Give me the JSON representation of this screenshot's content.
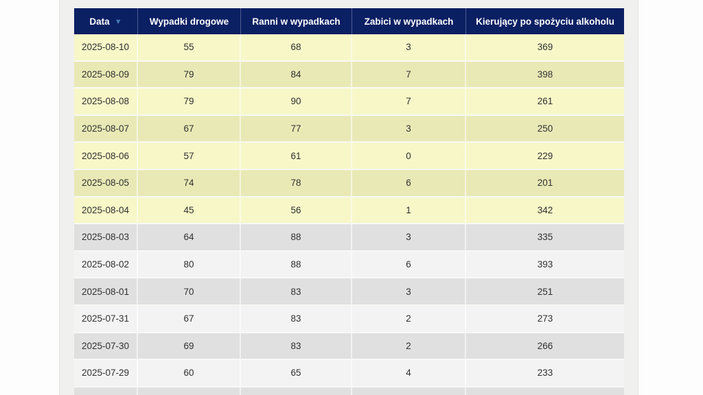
{
  "colors": {
    "page_bg": "#fdfdfd",
    "panel_bg": "#f0f0ee",
    "panel_edge": "#e4e4e2",
    "header_bg": "#0b1f63",
    "header_text": "#ffffff",
    "sort_icon": "#4677b5",
    "row_highlight_light": "#f7f7c8",
    "row_highlight_dark": "#e9e9b6",
    "row_normal_light": "#f3f3f3",
    "row_normal_dark": "#e0e0e0",
    "cell_text": "#303030",
    "cell_divider": "rgba(255,255,255,0.55)"
  },
  "table": {
    "sort_icon_glyph": "▼",
    "columns": [
      {
        "id": "date",
        "label": "Data",
        "sorted_desc": true
      },
      {
        "id": "accidents",
        "label": "Wypadki drogowe",
        "sorted_desc": false
      },
      {
        "id": "injured",
        "label": "Ranni w wypadkach",
        "sorted_desc": false
      },
      {
        "id": "killed",
        "label": "Zabici w wypadkach",
        "sorted_desc": false
      },
      {
        "id": "drunk_drivers",
        "label": "Kierujący po spożyciu alkoholu",
        "sorted_desc": false
      }
    ],
    "rows": [
      {
        "date": "2025-08-10",
        "accidents": "55",
        "injured": "68",
        "killed": "3",
        "drunk_drivers": "369",
        "highlighted": true
      },
      {
        "date": "2025-08-09",
        "accidents": "79",
        "injured": "84",
        "killed": "7",
        "drunk_drivers": "398",
        "highlighted": true
      },
      {
        "date": "2025-08-08",
        "accidents": "79",
        "injured": "90",
        "killed": "7",
        "drunk_drivers": "261",
        "highlighted": true
      },
      {
        "date": "2025-08-07",
        "accidents": "67",
        "injured": "77",
        "killed": "3",
        "drunk_drivers": "250",
        "highlighted": true
      },
      {
        "date": "2025-08-06",
        "accidents": "57",
        "injured": "61",
        "killed": "0",
        "drunk_drivers": "229",
        "highlighted": true
      },
      {
        "date": "2025-08-05",
        "accidents": "74",
        "injured": "78",
        "killed": "6",
        "drunk_drivers": "201",
        "highlighted": true
      },
      {
        "date": "2025-08-04",
        "accidents": "45",
        "injured": "56",
        "killed": "1",
        "drunk_drivers": "342",
        "highlighted": true
      },
      {
        "date": "2025-08-03",
        "accidents": "64",
        "injured": "88",
        "killed": "3",
        "drunk_drivers": "335",
        "highlighted": false
      },
      {
        "date": "2025-08-02",
        "accidents": "80",
        "injured": "88",
        "killed": "6",
        "drunk_drivers": "393",
        "highlighted": false
      },
      {
        "date": "2025-08-01",
        "accidents": "70",
        "injured": "83",
        "killed": "3",
        "drunk_drivers": "251",
        "highlighted": false
      },
      {
        "date": "2025-07-31",
        "accidents": "67",
        "injured": "83",
        "killed": "2",
        "drunk_drivers": "273",
        "highlighted": false
      },
      {
        "date": "2025-07-30",
        "accidents": "69",
        "injured": "83",
        "killed": "2",
        "drunk_drivers": "266",
        "highlighted": false
      },
      {
        "date": "2025-07-29",
        "accidents": "60",
        "injured": "65",
        "killed": "4",
        "drunk_drivers": "233",
        "highlighted": false
      }
    ]
  }
}
